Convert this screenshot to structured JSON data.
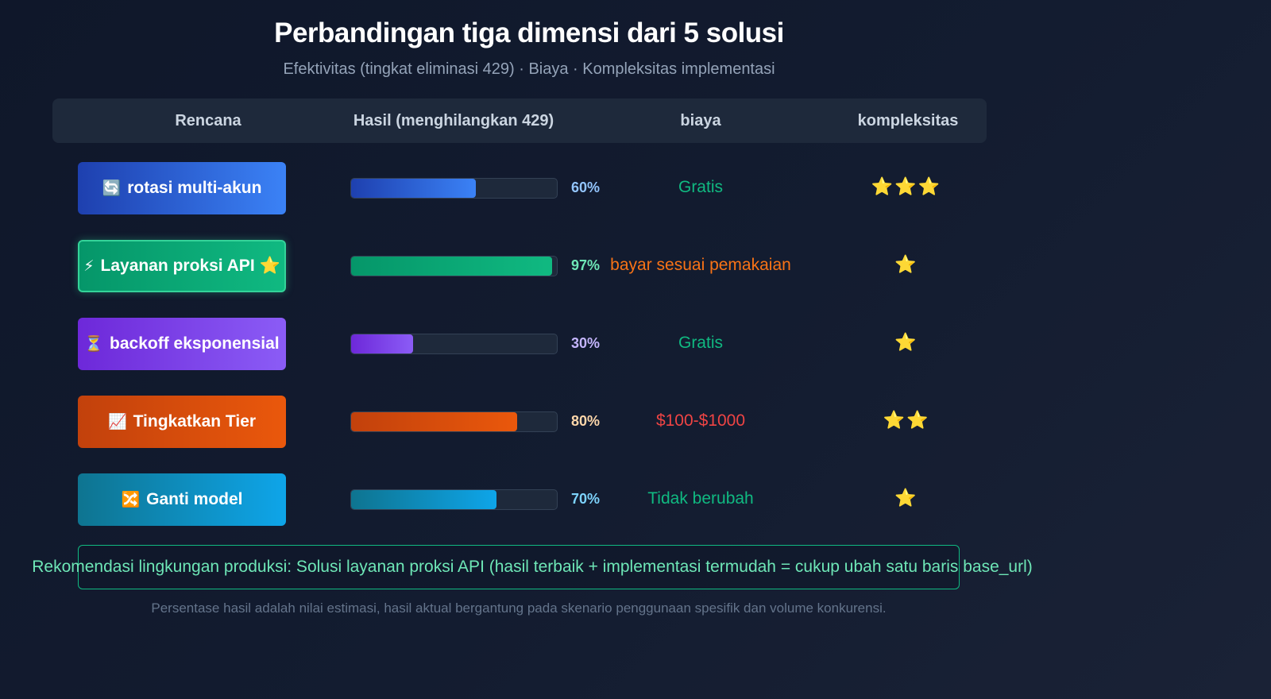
{
  "header": {
    "title": "Perbandingan tiga dimensi dari 5 solusi",
    "subtitle": "Efektivitas (tingkat eliminasi 429) · Biaya · Kompleksitas implementasi"
  },
  "chart_data": {
    "type": "table",
    "columns": [
      "Rencana",
      "Hasil (menghilangkan 429)",
      "biaya",
      "kompleksitas"
    ],
    "rows": [
      {
        "icon": "🔄",
        "icon_name": "rotate-icon",
        "plan": "rotasi multi-akun",
        "featured": false,
        "effect": 60,
        "effect_label": "60%",
        "cost": "Gratis",
        "complexity": 3,
        "complexity_stars": "⭐⭐⭐",
        "color_from": "#1e40af",
        "color_to": "#3b82f6",
        "pct_color": "#93c5fd",
        "cost_color": "#10b981"
      },
      {
        "icon": "⚡",
        "icon_name": "lightning-icon",
        "plan": "Layanan proksi API",
        "featured": true,
        "featured_mark": "⭐",
        "effect": 97,
        "effect_label": "97%",
        "cost": "bayar sesuai pemakaian",
        "complexity": 1,
        "complexity_stars": "⭐",
        "color_from": "#059669",
        "color_to": "#10b981",
        "pct_color": "#6ee7b7",
        "cost_color": "#f97316"
      },
      {
        "icon": "⏳",
        "icon_name": "hourglass-icon",
        "plan": "backoff eksponensial",
        "featured": false,
        "effect": 30,
        "effect_label": "30%",
        "cost": "Gratis",
        "complexity": 1,
        "complexity_stars": "⭐",
        "color_from": "#6d28d9",
        "color_to": "#8b5cf6",
        "pct_color": "#c4b5fd",
        "cost_color": "#10b981"
      },
      {
        "icon": "📈",
        "icon_name": "chart-up-icon",
        "plan": "Tingkatkan Tier",
        "featured": false,
        "effect": 80,
        "effect_label": "80%",
        "cost": "$100-$1000",
        "complexity": 2,
        "complexity_stars": "⭐⭐",
        "color_from": "#c2410c",
        "color_to": "#ea580c",
        "pct_color": "#fed7aa",
        "cost_color": "#ef4444"
      },
      {
        "icon": "🔀",
        "icon_name": "shuffle-icon",
        "plan": "Ganti model",
        "featured": false,
        "effect": 70,
        "effect_label": "70%",
        "cost": "Tidak berubah",
        "complexity": 1,
        "complexity_stars": "⭐",
        "color_from": "#0e7490",
        "color_to": "#0ea5e9",
        "pct_color": "#7dd3fc",
        "cost_color": "#10b981"
      }
    ],
    "effect_range": [
      0,
      100
    ]
  },
  "recommendation": "Rekomendasi lingkungan produksi: Solusi layanan proksi API (hasil terbaik + implementasi termudah = cukup ubah satu baris base_url)",
  "footnote": "Persentase hasil adalah nilai estimasi, hasil aktual bergantung pada skenario penggunaan spesifik dan volume konkurensi."
}
